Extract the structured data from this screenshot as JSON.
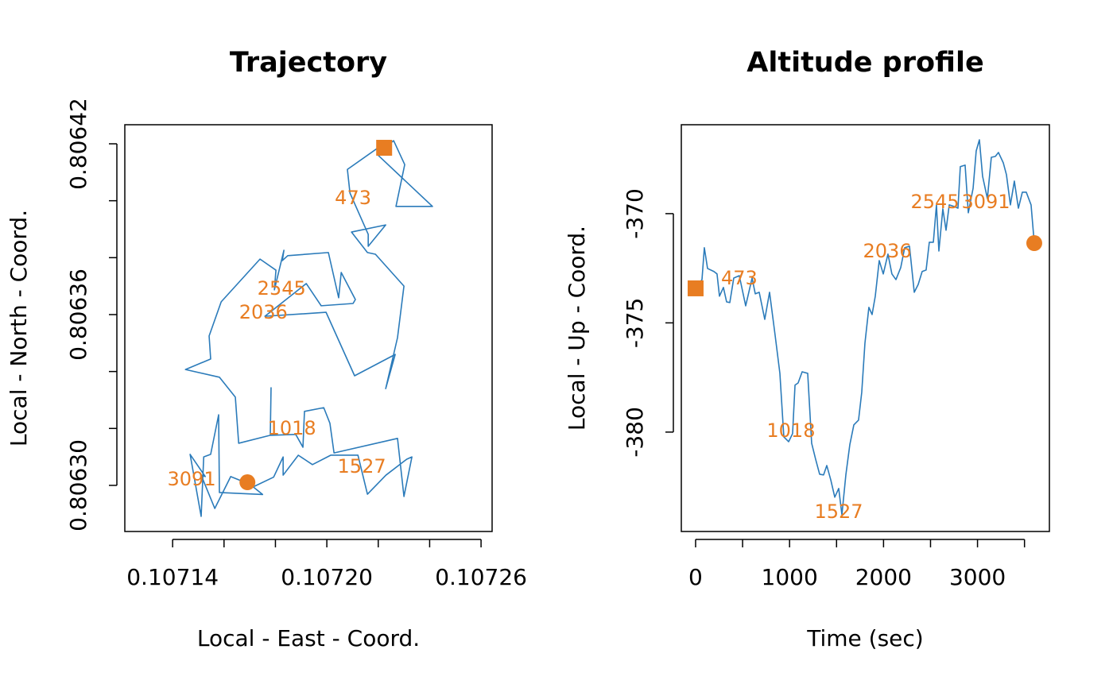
{
  "chart_data": [
    {
      "type": "line",
      "title": "Trajectory",
      "xlabel": "Local - East - Coord.",
      "ylabel": "Local - North - Coord.",
      "color": "#2b7bba",
      "marker_color": "#e87d22",
      "start_marker": "square",
      "end_marker": "circle",
      "x": [
        0.1072223,
        0.107226,
        0.1072303,
        0.1072269,
        0.1072411,
        0.1072198,
        0.1072226,
        0.107208,
        0.107209,
        0.1072161,
        0.1072161,
        0.1072229,
        0.1072096,
        0.1072158,
        0.1072189,
        0.10723,
        0.1072275,
        0.1072229,
        0.1072266,
        0.1072108,
        0.1071997,
        0.1071759,
        0.107192,
        0.1071978,
        0.1072102,
        0.1072111,
        0.1072056,
        0.1072046,
        0.1072006,
        0.1071848,
        0.1071827,
        0.1071833,
        0.1071796,
        0.1071802,
        0.107174,
        0.1071589,
        0.1071542,
        0.1071548,
        0.107145,
        0.1071582,
        0.1071644,
        0.1071657,
        0.107178,
        0.1071783,
        0.107178,
        0.1071879,
        0.1071907,
        0.1071913,
        0.1071988,
        0.1072012,
        0.1072028,
        0.1072275,
        0.10723,
        0.1072331,
        0.1072311,
        0.107223,
        0.1072158,
        0.1072121,
        0.1072015,
        0.1071944,
        0.1071889,
        0.107183,
        0.107183,
        0.1071793,
        0.1071719,
        0.1071626,
        0.1071564,
        0.1071511,
        0.1071527,
        0.1071468,
        0.1071511,
        0.1071521,
        0.1071548,
        0.1071579,
        0.1071582,
        0.107175,
        0.1071691
      ],
      "values": [
        0.8064186,
        0.8064211,
        0.8064127,
        0.806398,
        0.806398,
        0.8064161,
        0.8064203,
        0.806411,
        0.8064027,
        0.8063882,
        0.806384,
        0.8063915,
        0.806389,
        0.8063818,
        0.8063812,
        0.80637,
        0.8063519,
        0.806334,
        0.806346,
        0.8063385,
        0.8063608,
        0.8063594,
        0.8063709,
        0.8063631,
        0.8063639,
        0.8063653,
        0.8063748,
        0.8063659,
        0.8063818,
        0.8063807,
        0.806379,
        0.8063826,
        0.8063687,
        0.8063756,
        0.8063795,
        0.8063645,
        0.8063525,
        0.8063444,
        0.8063407,
        0.806338,
        0.806331,
        0.8063148,
        0.8063176,
        0.8063343,
        0.8063176,
        0.8063179,
        0.8063134,
        0.806326,
        0.8063273,
        0.8063218,
        0.8063114,
        0.8063165,
        0.8062961,
        0.80631,
        0.8063092,
        0.8063036,
        0.8062969,
        0.8063106,
        0.8063106,
        0.8063073,
        0.8063106,
        0.8063036,
        0.80631,
        0.8063029,
        0.8062997,
        0.8063031,
        0.8062919,
        0.8063036,
        0.8063031,
        0.8063109,
        0.8062891,
        0.80631,
        0.8063109,
        0.8063248,
        0.8062975,
        0.8062968,
        0.8063011
      ],
      "annotations": [
        {
          "text": "473",
          "x": 0.1072102,
          "y": 0.8064007
        },
        {
          "text": "1018",
          "x": 0.1071864,
          "y": 0.8063198
        },
        {
          "text": "1527",
          "x": 0.1072136,
          "y": 0.8063064
        },
        {
          "text": "2036",
          "x": 0.1071753,
          "y": 0.8063606
        },
        {
          "text": "2545",
          "x": 0.1071824,
          "y": 0.8063689
        },
        {
          "text": "3091",
          "x": 0.1071474,
          "y": 0.806302
        }
      ],
      "xlim": [
        0.1071214,
        0.1072643
      ],
      "ylim": [
        0.8062838,
        0.8064267
      ],
      "xticks": [
        {
          "value": 0.10714,
          "label": "0.10714"
        },
        {
          "value": 0.1072,
          "label": "0.10720"
        },
        {
          "value": 0.10726,
          "label": "0.10726"
        }
      ],
      "xminorticks": [
        0.10716,
        0.10718,
        0.10722,
        0.10724
      ],
      "yticks": [
        {
          "value": 0.8063,
          "label": "0.80630"
        },
        {
          "value": 0.80636,
          "label": "0.80636"
        },
        {
          "value": 0.80642,
          "label": "0.80642"
        }
      ],
      "yminorticks": [
        0.80632,
        0.80634,
        0.80638,
        0.8064
      ]
    },
    {
      "type": "line",
      "title": "Altitude profile",
      "xlabel": "Time (sec)",
      "ylabel": "Local - Up - Coord.",
      "color": "#2b7bba",
      "marker_color": "#e87d22",
      "start_marker": "square",
      "end_marker": "circle",
      "x": [
        0,
        68,
        93,
        127,
        195,
        228,
        254,
        296,
        330,
        364,
        406,
        465,
        533,
        601,
        635,
        677,
        736,
        787,
        846,
        897,
        939,
        990,
        1032,
        1058,
        1091,
        1134,
        1193,
        1235,
        1277,
        1320,
        1362,
        1396,
        1438,
        1481,
        1523,
        1557,
        1599,
        1641,
        1684,
        1734,
        1768,
        1802,
        1844,
        1878,
        1912,
        1954,
        1997,
        2047,
        2089,
        2132,
        2183,
        2225,
        2276,
        2327,
        2369,
        2411,
        2453,
        2487,
        2530,
        2563,
        2589,
        2631,
        2665,
        2699,
        2750,
        2792,
        2817,
        2868,
        2902,
        2953,
        2986,
        3020,
        3054,
        3105,
        3147,
        3190,
        3223,
        3274,
        3308,
        3350,
        3392,
        3435,
        3477,
        3519,
        3570,
        3604
      ],
      "values": [
        -373.42,
        -373.02,
        -371.56,
        -372.51,
        -372.65,
        -372.76,
        -373.78,
        -373.38,
        -374.04,
        -374.07,
        -372.95,
        -372.84,
        -374.22,
        -372.95,
        -373.67,
        -373.6,
        -374.84,
        -373.6,
        -375.56,
        -377.31,
        -380.22,
        -380.44,
        -380.07,
        -377.85,
        -377.75,
        -377.24,
        -377.31,
        -380.51,
        -381.24,
        -381.93,
        -381.96,
        -381.53,
        -382.18,
        -382.98,
        -382.58,
        -383.78,
        -381.96,
        -380.58,
        -379.67,
        -379.45,
        -378.18,
        -375.93,
        -374.29,
        -374.62,
        -373.78,
        -372.15,
        -372.76,
        -371.85,
        -372.76,
        -373.02,
        -372.47,
        -371.56,
        -371.49,
        -373.6,
        -373.24,
        -372.65,
        -372.58,
        -371.31,
        -371.31,
        -369.6,
        -371.71,
        -369.78,
        -370.76,
        -369.6,
        -369.67,
        -369.75,
        -367.85,
        -367.78,
        -369.96,
        -368.84,
        -367.13,
        -366.62,
        -368.29,
        -369.31,
        -367.42,
        -367.38,
        -367.2,
        -367.67,
        -368.22,
        -369.6,
        -368.51,
        -369.75,
        -369.02,
        -369.02,
        -369.6,
        -371.35
      ],
      "annotations": [
        {
          "text": "473",
          "x": 465,
          "y": -372.98
        },
        {
          "text": "1018",
          "x": 1015,
          "y": -379.96
        },
        {
          "text": "1527",
          "x": 1523,
          "y": -383.67
        },
        {
          "text": "2036",
          "x": 2039,
          "y": -371.75
        },
        {
          "text": "2545",
          "x": 2547,
          "y": -369.49
        },
        {
          "text": "3091",
          "x": 3088,
          "y": -369.49
        }
      ],
      "xlim": [
        -152,
        3765
      ],
      "ylim": [
        -384.55,
        -365.93
      ],
      "xticks": [
        0,
        1000,
        2000,
        3000
      ],
      "xminorticks": [
        500,
        1500,
        2500,
        3500
      ],
      "yticks": [
        -380,
        -375,
        -370
      ],
      "yminorticks": []
    }
  ]
}
